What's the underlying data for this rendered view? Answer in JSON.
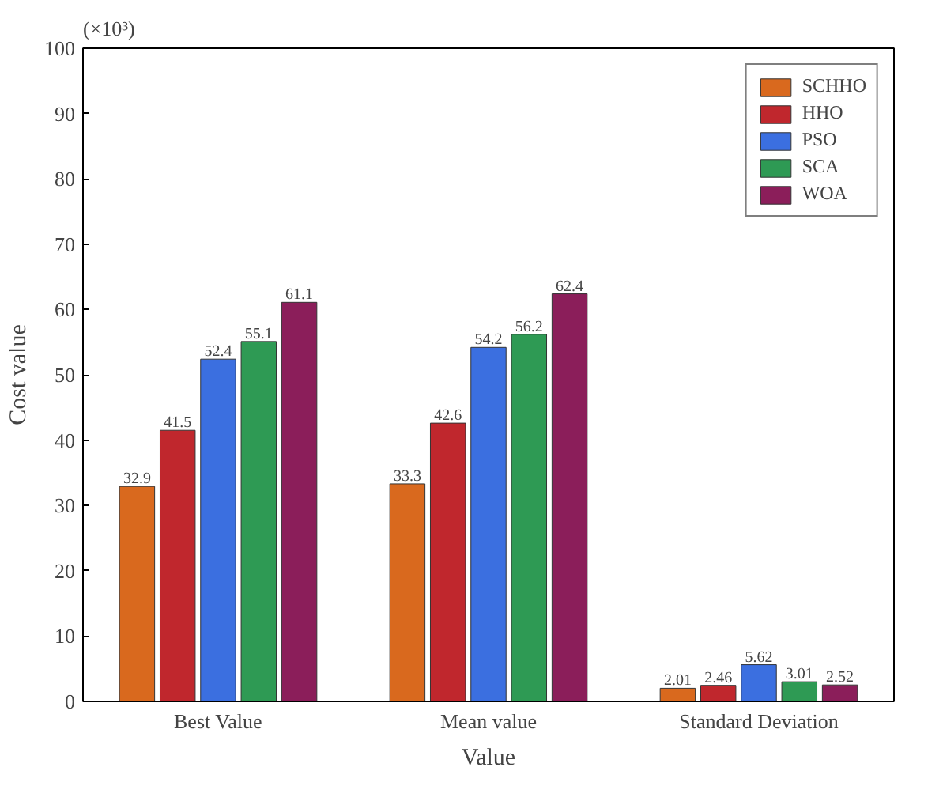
{
  "chart_data": {
    "type": "bar",
    "xlabel": "Value",
    "ylabel": "Cost value",
    "annotations": [
      "(×10³)"
    ],
    "categories": [
      "Best Value",
      "Mean value",
      "Standard Deviation"
    ],
    "series": [
      {
        "name": "SCHHO",
        "color": "#d9691e",
        "values": [
          32.9,
          33.3,
          2.01
        ]
      },
      {
        "name": "HHO",
        "color": "#c0272d",
        "values": [
          41.5,
          42.6,
          2.46
        ]
      },
      {
        "name": "PSO",
        "color": "#3b6fe0",
        "values": [
          52.4,
          54.2,
          5.62
        ]
      },
      {
        "name": "SCA",
        "color": "#2e9a54",
        "values": [
          55.1,
          56.2,
          3.01
        ]
      },
      {
        "name": "WOA",
        "color": "#8b1e5a",
        "values": [
          61.1,
          62.4,
          2.52
        ]
      }
    ],
    "ylim": [
      0,
      100
    ],
    "yticks": [
      0,
      10,
      20,
      30,
      40,
      50,
      60,
      70,
      80,
      90,
      100
    ],
    "data_labels": true,
    "legend": "top right",
    "grid": false
  }
}
